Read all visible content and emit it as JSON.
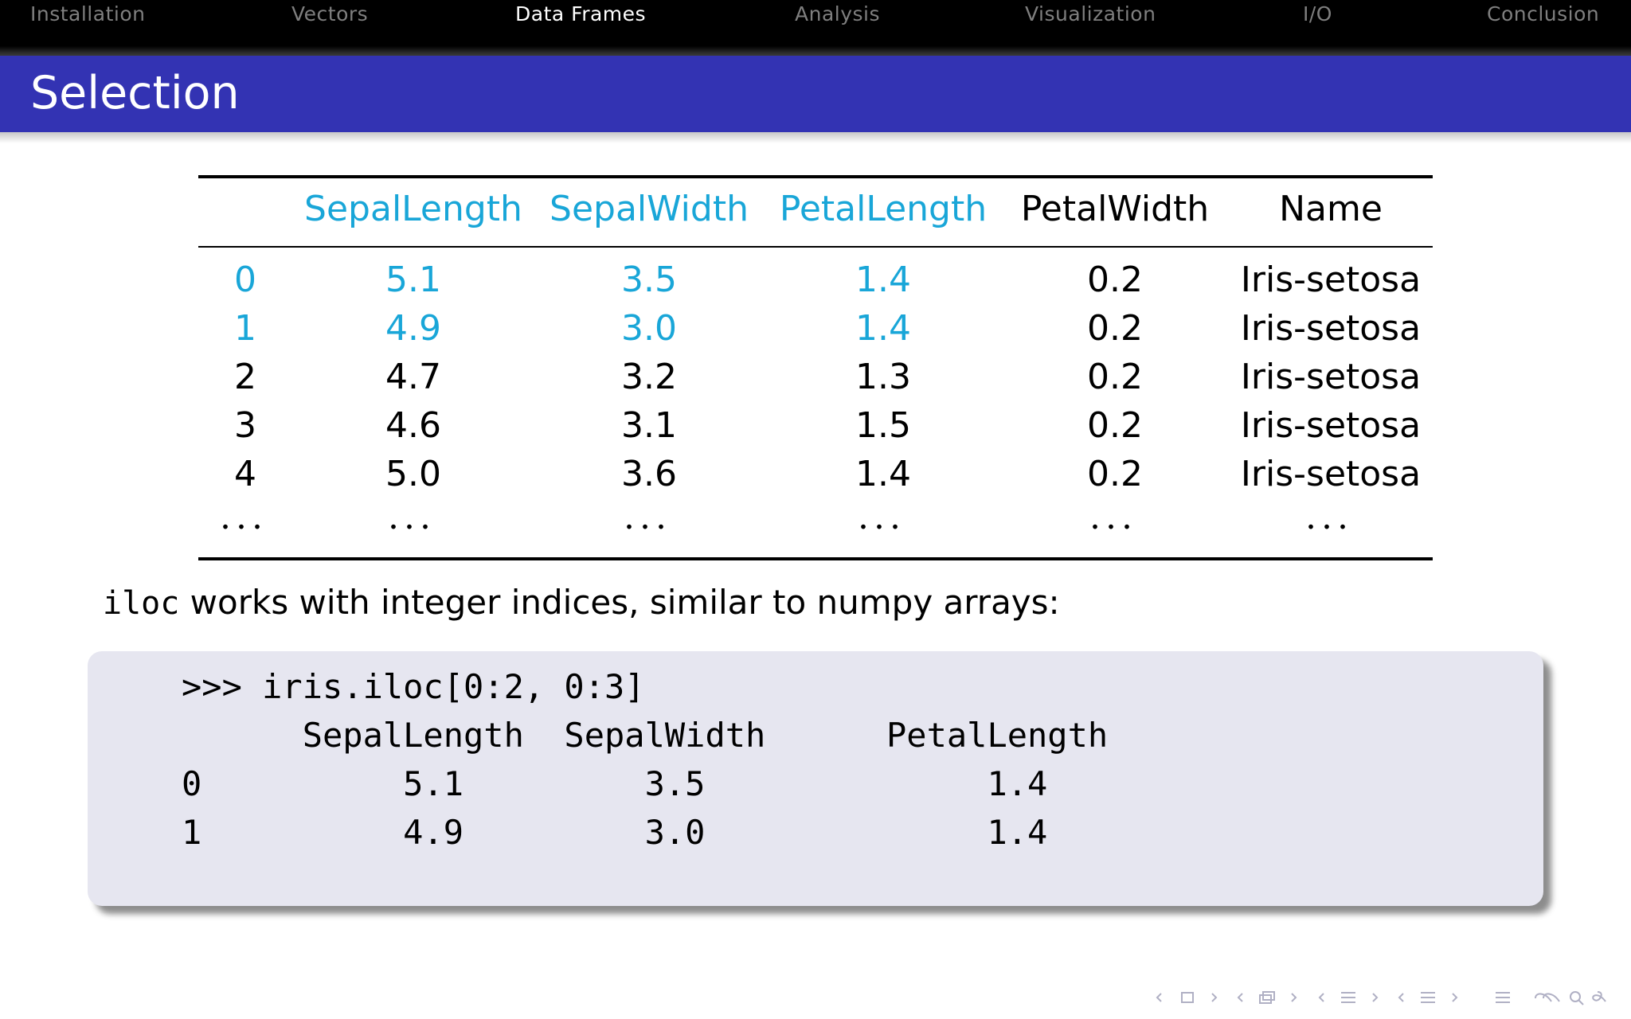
{
  "navigation": {
    "sections": [
      {
        "label": "Installation",
        "active": false
      },
      {
        "label": "Vectors",
        "active": false
      },
      {
        "label": "Data Frames",
        "active": true
      },
      {
        "label": "Analysis",
        "active": false
      },
      {
        "label": "Visualization",
        "active": false
      },
      {
        "label": "I/O",
        "active": false
      },
      {
        "label": "Conclusion",
        "active": false
      }
    ]
  },
  "slide": {
    "title": "Selection"
  },
  "table": {
    "headers": [
      "",
      "SepalLength",
      "SepalWidth",
      "PetalLength",
      "PetalWidth",
      "Name"
    ],
    "rows": [
      [
        "0",
        "5.1",
        "3.5",
        "1.4",
        "0.2",
        "Iris-setosa"
      ],
      [
        "1",
        "4.9",
        "3.0",
        "1.4",
        "0.2",
        "Iris-setosa"
      ],
      [
        "2",
        "4.7",
        "3.2",
        "1.3",
        "0.2",
        "Iris-setosa"
      ],
      [
        "3",
        "4.6",
        "3.1",
        "1.5",
        "0.2",
        "Iris-setosa"
      ],
      [
        "4",
        "5.0",
        "3.6",
        "1.4",
        "0.2",
        "Iris-setosa"
      ]
    ],
    "ellipsis": "...",
    "highlight_color": "#19a6d8"
  },
  "body": {
    "code_word": "iloc",
    "text": " works with integer indices, similar to numpy arrays:"
  },
  "code": {
    "lines": [
      ">>> iris.iloc[0:2, 0:3]",
      "      SepalLength  SepalWidth      PetalLength",
      "0          5.1         3.5              1.4",
      "1          4.9         3.0              1.4"
    ]
  },
  "colors": {
    "navbar": "#000000",
    "titlebar": "#3333b3",
    "codeblock": "#e6e6f0"
  }
}
